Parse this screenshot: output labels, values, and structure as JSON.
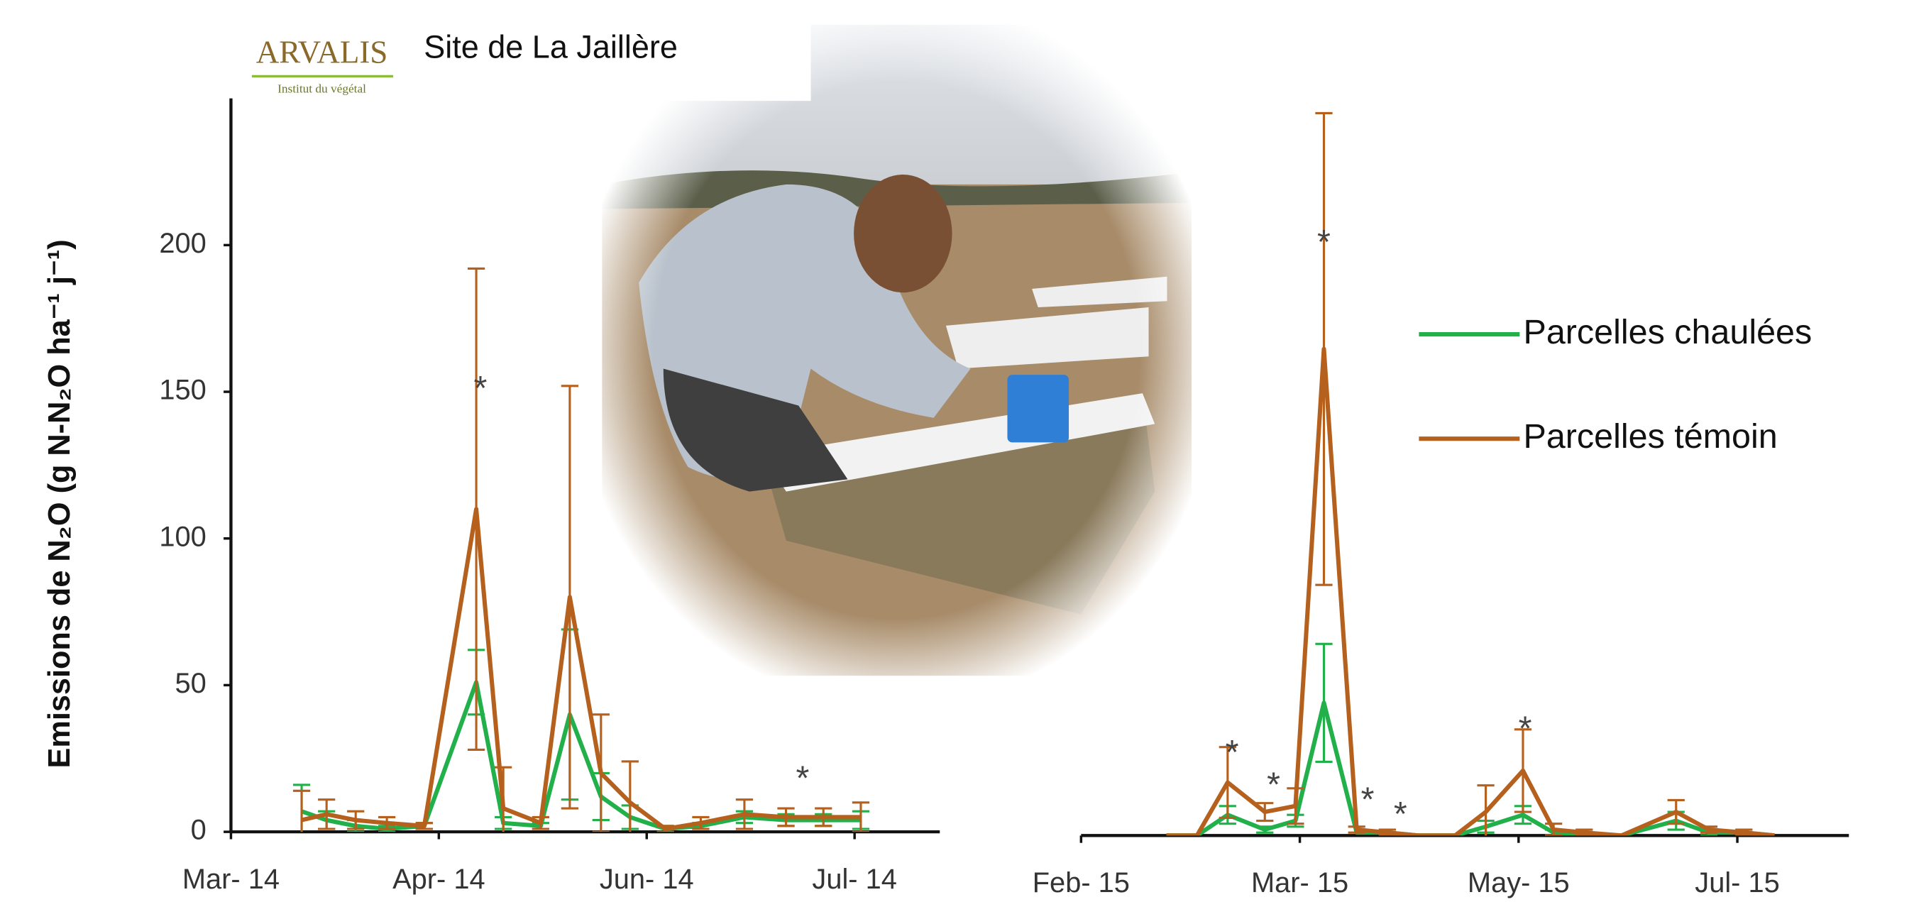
{
  "logo": "ARVALIS",
  "logo_subtitle": "Institut du végétal",
  "title": "Site de La Jaillère",
  "chart_data": [
    {
      "type": "line",
      "ylabel": "Emissions de N₂O (g N-N₂O ha⁻¹ j⁻¹)",
      "x": [
        0.34,
        0.46,
        0.6,
        0.75,
        0.93,
        1.18,
        1.31,
        1.49,
        1.63,
        1.78,
        1.92,
        2.09,
        2.26,
        2.47,
        2.67,
        2.85,
        3.03
      ],
      "series": [
        {
          "name": "Parcelles chaulées",
          "color": "#22b04b",
          "values": [
            7,
            4,
            2,
            1,
            2,
            51,
            3,
            2,
            40,
            12,
            5,
            1,
            2,
            5,
            4,
            4,
            4
          ],
          "errors": [
            9,
            3,
            2,
            1,
            1,
            11,
            2,
            1,
            29,
            8,
            4,
            1,
            1,
            2,
            2,
            2,
            3
          ]
        },
        {
          "name": "Parcelles témoin",
          "color": "#b5601c",
          "values": [
            4,
            6,
            4,
            3,
            2,
            110,
            8,
            3,
            80,
            20,
            10,
            1,
            3,
            6,
            5,
            5,
            5
          ],
          "errors": [
            10,
            5,
            3,
            2,
            1,
            82,
            14,
            2,
            72,
            20,
            14,
            1,
            2,
            5,
            3,
            3,
            5
          ]
        }
      ],
      "annotations": [
        {
          "text": "*",
          "x": 1.2,
          "y": 153
        },
        {
          "text": "*",
          "x": 2.75,
          "y": 20
        }
      ],
      "xlim": [
        0,
        3.41
      ],
      "xticks": [
        {
          "value": 0,
          "label": "Mar- 14"
        },
        {
          "value": 1,
          "label": "Apr- 14"
        },
        {
          "value": 2,
          "label": "Jun- 14"
        },
        {
          "value": 3,
          "label": "Jul- 14"
        }
      ],
      "ylim": [
        0,
        250
      ],
      "yticks": [
        0,
        50,
        100,
        150,
        200
      ],
      "y_axis": true
    },
    {
      "type": "line",
      "x": [
        0.39,
        0.53,
        0.67,
        0.84,
        0.98,
        1.11,
        1.26,
        1.4,
        1.54,
        1.71,
        1.85,
        2.02,
        2.16,
        2.3,
        2.47,
        2.72,
        2.87,
        3.03,
        3.17
      ],
      "series": [
        {
          "name": "Parcelles chaulées",
          "color": "#22b04b",
          "values": [
            0,
            0,
            7,
            2,
            5,
            45,
            1,
            1,
            0,
            0,
            3,
            7,
            1,
            0,
            0,
            5,
            1,
            1,
            0
          ],
          "errors": [
            0,
            0,
            3,
            1,
            2,
            20,
            0,
            0,
            0,
            0,
            2,
            3,
            1,
            0,
            0,
            3,
            1,
            0,
            0
          ]
        },
        {
          "name": "Parcelles témoin",
          "color": "#b5601c",
          "values": [
            0,
            0,
            18,
            8,
            10,
            165,
            2,
            1,
            0,
            0,
            8,
            22,
            2,
            1,
            0,
            8,
            2,
            1,
            0
          ],
          "errors": [
            0,
            0,
            12,
            3,
            6,
            80,
            1,
            1,
            0,
            0,
            9,
            14,
            2,
            1,
            0,
            4,
            1,
            1,
            0
          ]
        }
      ],
      "annotations": [
        {
          "text": "*",
          "x": 0.69,
          "y": 30
        },
        {
          "text": "*",
          "x": 0.88,
          "y": 19
        },
        {
          "text": "*",
          "x": 1.11,
          "y": 203
        },
        {
          "text": "*",
          "x": 1.31,
          "y": 14
        },
        {
          "text": "*",
          "x": 1.46,
          "y": 9
        },
        {
          "text": "*",
          "x": 2.03,
          "y": 38
        }
      ],
      "xlim": [
        0,
        3.51
      ],
      "xticks": [
        {
          "value": 0,
          "label": "Feb- 15"
        },
        {
          "value": 1,
          "label": "Mar- 15"
        },
        {
          "value": 2,
          "label": "May- 15"
        },
        {
          "value": 3,
          "label": "Jul- 15"
        }
      ],
      "ylim": [
        0,
        250
      ],
      "y_axis": false,
      "legend": "right"
    }
  ]
}
